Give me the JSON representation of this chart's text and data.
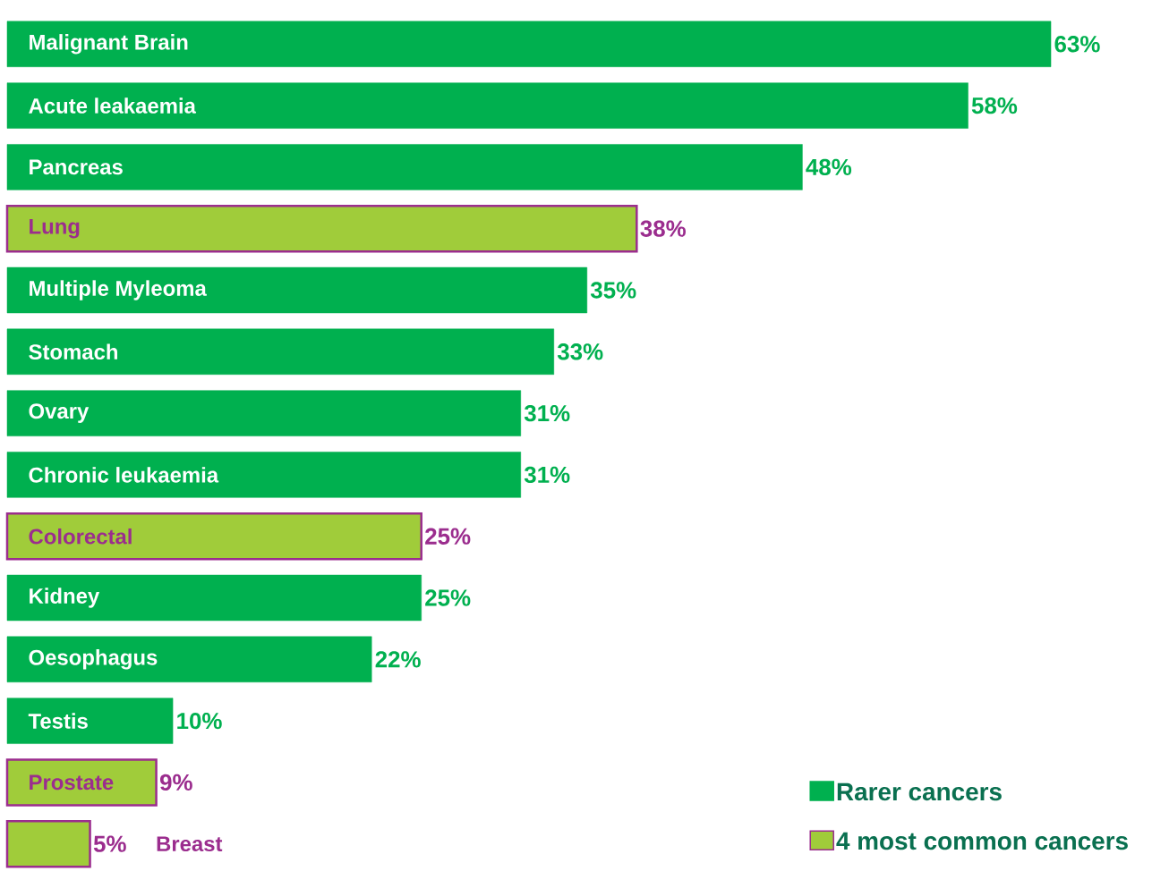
{
  "chart_data": {
    "type": "bar",
    "orientation": "horizontal",
    "legend": "bottom right",
    "categories": [
      "Malignant Brain",
      "Acute leakaemia",
      "Pancreas",
      "Lung",
      "Multiple Myleoma",
      "Stomach",
      "Ovary",
      "Chronic leukaemia",
      "Colorectal",
      "Kidney",
      "Oesophagus",
      "Testis",
      "Prostate",
      "Breast"
    ],
    "series": [
      {
        "name": "Rarer cancers",
        "color": "#00b04f",
        "values": [
          63,
          58,
          48,
          null,
          35,
          33,
          31,
          31,
          null,
          25,
          22,
          10,
          null,
          null
        ],
        "value_labels": [
          "63%",
          "58%",
          "48%",
          null,
          "35%",
          "33%",
          "31%",
          "31%",
          null,
          "25%",
          "22%",
          "10%",
          null,
          null
        ]
      },
      {
        "name": "4 most common cancers",
        "color": "#a0cc3a",
        "values": [
          null,
          null,
          null,
          38,
          null,
          null,
          null,
          null,
          25,
          null,
          null,
          null,
          9,
          5
        ],
        "value_labels": [
          null,
          null,
          null,
          "38%",
          null,
          null,
          null,
          null,
          "25%",
          null,
          null,
          null,
          "9%",
          "5%"
        ]
      }
    ]
  }
}
